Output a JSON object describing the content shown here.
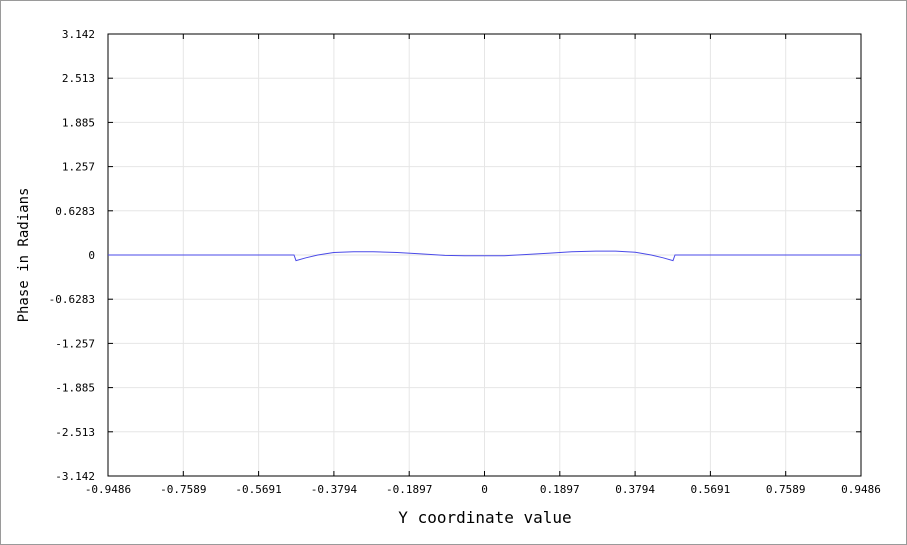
{
  "chart_data": {
    "type": "line",
    "title": "",
    "xlabel": "Y coordinate value",
    "ylabel": "Phase in Radians",
    "xlim": [
      -0.9486,
      0.9486
    ],
    "ylim": [
      -3.142,
      3.142
    ],
    "x_ticks": [
      "-0.9486",
      "-0.7589",
      "-0.5691",
      "-0.3794",
      "-0.1897",
      "0",
      "0.1897",
      "0.3794",
      "0.5691",
      "0.7589",
      "0.9486"
    ],
    "y_ticks": [
      "3.142",
      "2.513",
      "1.885",
      "1.257",
      "0.6283",
      "0",
      "-0.6283",
      "-1.257",
      "-1.885",
      "-2.513",
      "-3.142"
    ],
    "grid": true,
    "series": [
      {
        "color": "#4a4ae8",
        "x": [
          -0.9486,
          -0.48,
          -0.475,
          -0.45,
          -0.42,
          -0.38,
          -0.33,
          -0.28,
          -0.22,
          -0.16,
          -0.1,
          -0.05,
          0.0,
          0.05,
          0.1,
          0.16,
          0.22,
          0.28,
          0.33,
          0.38,
          0.42,
          0.45,
          0.475,
          0.48,
          0.9486
        ],
        "y": [
          0,
          0,
          -0.08,
          -0.04,
          0.0,
          0.035,
          0.045,
          0.045,
          0.035,
          0.015,
          -0.005,
          -0.01,
          -0.01,
          -0.01,
          0.005,
          0.025,
          0.045,
          0.055,
          0.055,
          0.04,
          0.0,
          -0.04,
          -0.08,
          0,
          0
        ]
      }
    ]
  }
}
